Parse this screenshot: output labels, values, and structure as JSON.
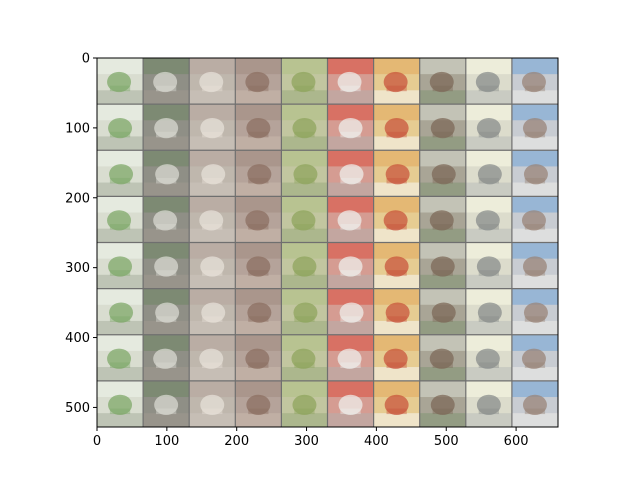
{
  "figure": {
    "type": "image-grid",
    "x_range": [
      0,
      660
    ],
    "y_range": [
      0,
      528
    ],
    "y_inverted": true,
    "rows": 8,
    "cols": 10,
    "cell_size": 66,
    "grid_line_color": "#6f6f6f",
    "x_ticks": [
      {
        "value": 0,
        "label": "0"
      },
      {
        "value": 100,
        "label": "100"
      },
      {
        "value": 200,
        "label": "200"
      },
      {
        "value": 300,
        "label": "300"
      },
      {
        "value": 400,
        "label": "400"
      },
      {
        "value": 500,
        "label": "500"
      },
      {
        "value": 600,
        "label": "600"
      }
    ],
    "y_ticks": [
      {
        "value": 0,
        "label": "0"
      },
      {
        "value": 100,
        "label": "100"
      },
      {
        "value": 200,
        "label": "200"
      },
      {
        "value": 300,
        "label": "300"
      },
      {
        "value": 400,
        "label": "400"
      },
      {
        "value": 500,
        "label": "500"
      }
    ],
    "columns": [
      {
        "subject": "bird-in-grass-icon",
        "bg": "#d9ddd0",
        "top": "#e6ece2",
        "bottom": "#b9bfb0",
        "accent": "#7fa86a"
      },
      {
        "subject": "dark-animal-icon",
        "bg": "#8f8f86",
        "top": "#7a8a70",
        "bottom": "#9a958c",
        "accent": "#d8d8d0"
      },
      {
        "subject": "gray-dog-icon",
        "bg": "#bfb7ad",
        "top": "#b8aca2",
        "bottom": "#c7c0b6",
        "accent": "#e6e0d8"
      },
      {
        "subject": "brown-animal-icon",
        "bg": "#b5a39a",
        "top": "#a8948a",
        "bottom": "#c2b2a6",
        "accent": "#8c6f62"
      },
      {
        "subject": "frog-on-leaves-icon",
        "bg": "#c2c6a0",
        "top": "#b6c28e",
        "bottom": "#a8b48a",
        "accent": "#8fa45e"
      },
      {
        "subject": "white-cat-icon",
        "bg": "#d59c92",
        "top": "#d86a5c",
        "bottom": "#c0a8a2",
        "accent": "#eeeeea"
      },
      {
        "subject": "red-flower-icon",
        "bg": "#e6cc92",
        "top": "#e3b46e",
        "bottom": "#f0e8d2",
        "accent": "#c8553c"
      },
      {
        "subject": "horse-icon",
        "bg": "#a9a596",
        "top": "#c8c8bc",
        "bottom": "#8f9a80",
        "accent": "#7d6a58"
      },
      {
        "subject": "ship-icon",
        "bg": "#dcdccc",
        "top": "#f0f0dc",
        "bottom": "#c6c8c0",
        "accent": "#8a8e8c"
      },
      {
        "subject": "truck-icon",
        "bg": "#c8ccd2",
        "top": "#8fb2d6",
        "bottom": "#e0e0e0",
        "accent": "#9a8478"
      }
    ]
  }
}
